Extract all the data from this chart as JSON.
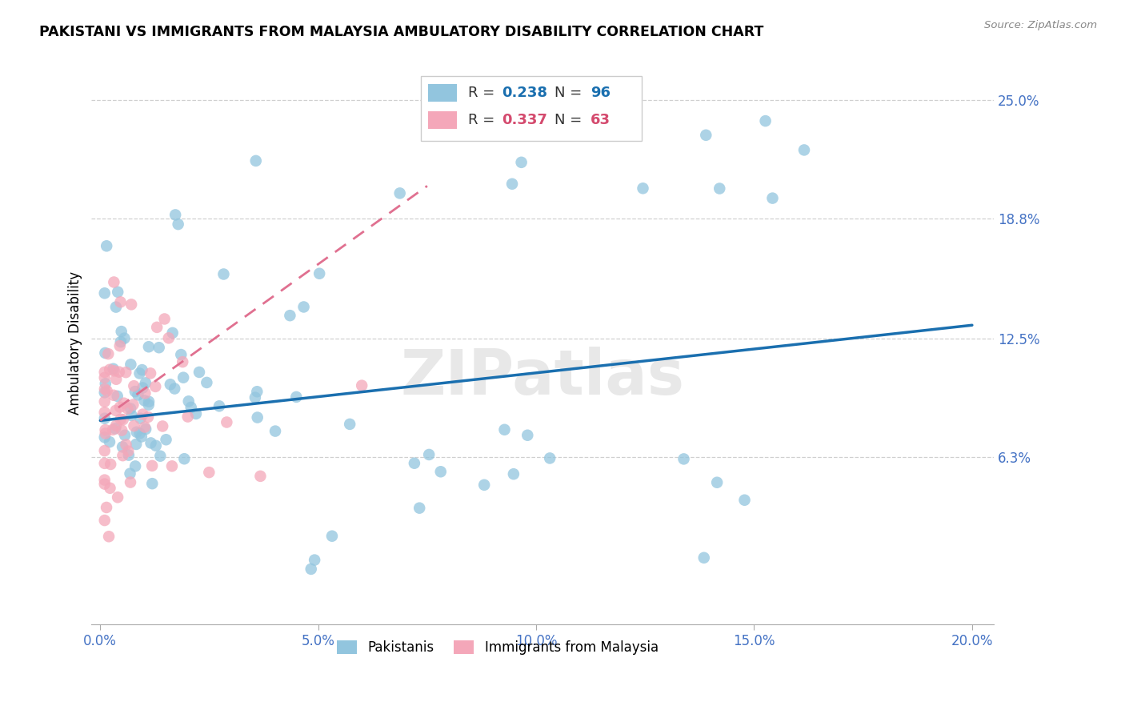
{
  "title": "PAKISTANI VS IMMIGRANTS FROM MALAYSIA AMBULATORY DISABILITY CORRELATION CHART",
  "source": "Source: ZipAtlas.com",
  "ylabel": "Ambulatory Disability",
  "ytick_labels": [
    "25.0%",
    "18.8%",
    "12.5%",
    "6.3%"
  ],
  "ytick_values": [
    0.25,
    0.188,
    0.125,
    0.063
  ],
  "xtick_labels": [
    "0.0%",
    "5.0%",
    "10.0%",
    "15.0%",
    "20.0%"
  ],
  "xtick_values": [
    0.0,
    0.05,
    0.1,
    0.15,
    0.2
  ],
  "xlim": [
    -0.002,
    0.205
  ],
  "ylim": [
    -0.025,
    0.27
  ],
  "legend1_R": "0.238",
  "legend1_N": "96",
  "legend2_R": "0.337",
  "legend2_N": "63",
  "color_blue": "#92c5de",
  "color_pink": "#f4a7b9",
  "color_blue_dark": "#1a6faf",
  "color_pink_dark": "#d44a6e",
  "color_pink_line": "#e07090",
  "watermark": "ZIPatlas",
  "blue_line_x": [
    0.0,
    0.2
  ],
  "blue_line_y": [
    0.082,
    0.132
  ],
  "pink_line_x": [
    0.0,
    0.075
  ],
  "pink_line_y": [
    0.082,
    0.205
  ],
  "ytick_color": "#4472c4",
  "xtick_color": "#4472c4"
}
